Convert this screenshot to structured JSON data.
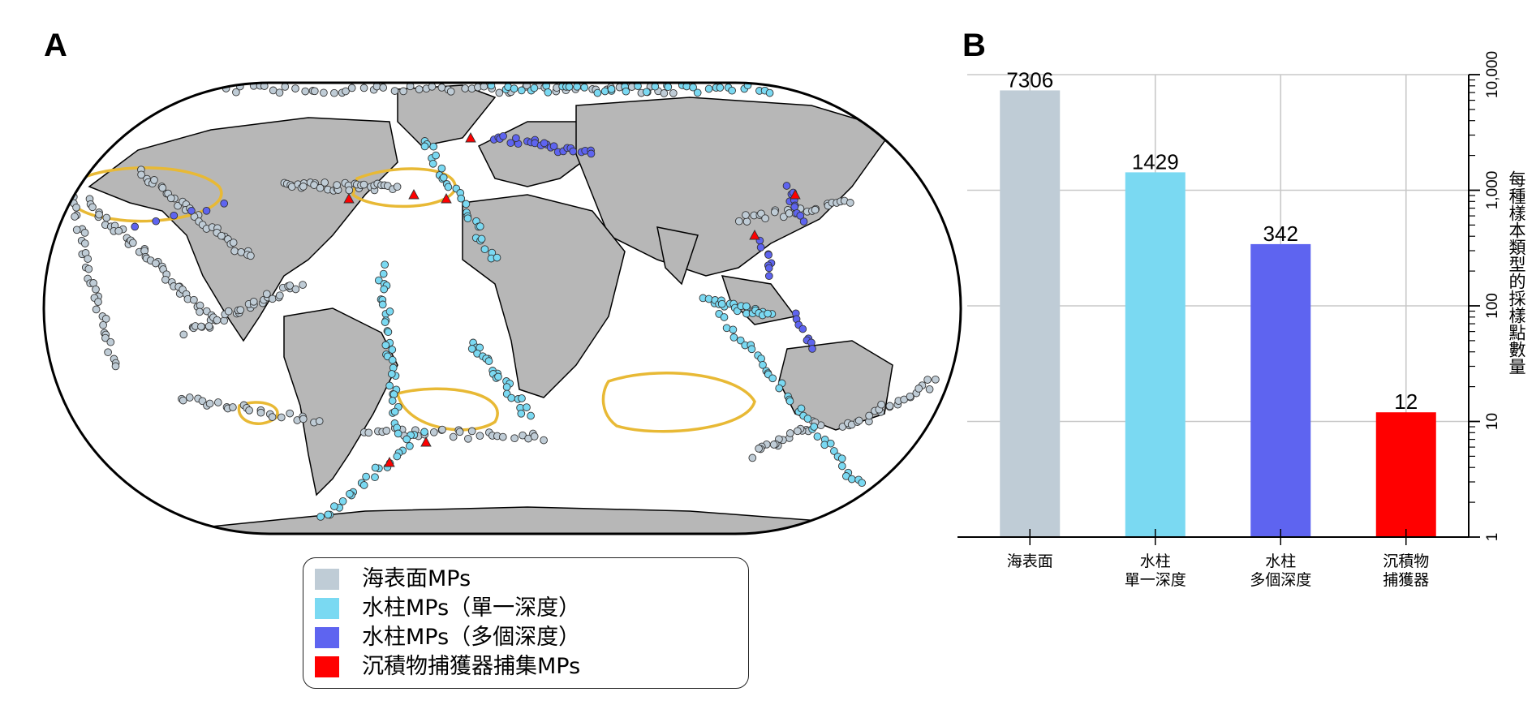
{
  "panel_a": {
    "label": "A",
    "legend": [
      {
        "key": "surface",
        "text": "海表面MPs",
        "color": "#bfccd6"
      },
      {
        "key": "single",
        "text": "水柱MPs（單一深度）",
        "color": "#7ad9f2"
      },
      {
        "key": "multi",
        "text": "水柱MPs（多個深度）",
        "color": "#5e64f0"
      },
      {
        "key": "trap",
        "text": "沉積物捕獲器捕集MPs",
        "color": "#ff0000"
      }
    ],
    "map_colors": {
      "land": "#b7b7b7",
      "ocean": "#ffffff",
      "gyre_outline": "#e8b935",
      "border": "#000000"
    }
  },
  "panel_b": {
    "label": "B",
    "y_axis_title": "每種樣本類型的採樣點數量"
  },
  "chart_data": {
    "type": "bar",
    "categories": [
      "海表面",
      "水柱\n單一深度",
      "水柱\n多個深度",
      "沉積物\n捕獲器"
    ],
    "values": [
      7306,
      1429,
      342,
      12
    ],
    "value_labels": [
      "7306",
      "1429",
      "342",
      "12"
    ],
    "colors": [
      "#bfccd6",
      "#7ad9f2",
      "#5e64f0",
      "#ff0000"
    ],
    "ylabel": "每種樣本類型的採樣點數量",
    "yscale": "log",
    "ylim": [
      1,
      10000
    ],
    "yticks": [
      1,
      10,
      100,
      1000,
      10000
    ],
    "ytick_labels": [
      "1",
      "10",
      "100",
      "1,000",
      "10,000"
    ],
    "yaxis_position": "right",
    "grid": true
  }
}
